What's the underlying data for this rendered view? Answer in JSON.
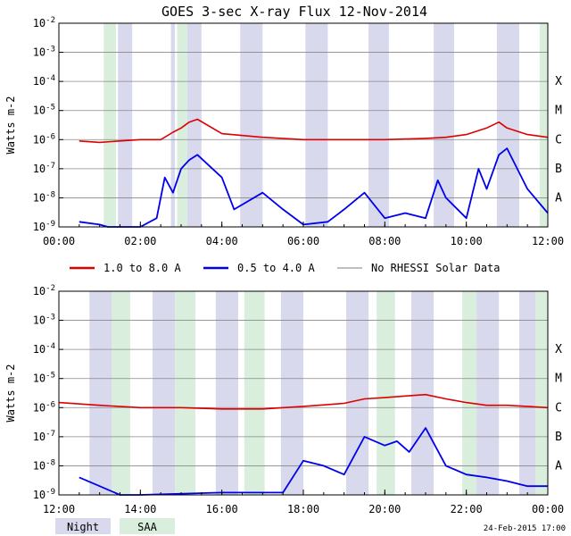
{
  "page": {
    "title": "GOES 3-sec X-ray Flux   12-Nov-2014",
    "footer_date": "24-Feb-2015 17:00"
  },
  "legend": {
    "series": [
      {
        "label": "1.0 to 8.0 A",
        "color": "#dd0000"
      },
      {
        "label": "0.5 to 4.0 A",
        "color": "#0000ee"
      },
      {
        "label": "No RHESSI Solar Data",
        "color": "#999999"
      }
    ],
    "bands": [
      {
        "label": "Night",
        "color": "#d9d9ee"
      },
      {
        "label": "SAA",
        "color": "#d9eedd"
      }
    ]
  },
  "chart_data": [
    {
      "type": "line",
      "title": "GOES 3-sec X-ray Flux   12-Nov-2014",
      "ylabel": "Watts m-2",
      "yscale": "log",
      "ylim": [
        1e-09,
        0.01
      ],
      "y_ticks": [
        "10-9",
        "10-8",
        "10-7",
        "10-6",
        "10-5",
        "10-4",
        "10-3",
        "10-2"
      ],
      "class_labels": [
        {
          "label": "A",
          "value": 1e-08
        },
        {
          "label": "B",
          "value": 1e-07
        },
        {
          "label": "C",
          "value": 1e-06
        },
        {
          "label": "M",
          "value": 1e-05
        },
        {
          "label": "X",
          "value": 0.0001
        }
      ],
      "xlim": [
        0,
        12
      ],
      "x_ticks": [
        "00:00",
        "02:00",
        "04:00",
        "06:00",
        "08:00",
        "10:00",
        "12:00"
      ],
      "night_bands": [
        [
          1.45,
          1.8
        ],
        [
          2.75,
          2.85
        ],
        [
          3.15,
          3.5
        ],
        [
          4.45,
          5.0
        ],
        [
          6.05,
          6.6
        ],
        [
          7.6,
          8.1
        ],
        [
          9.2,
          9.7
        ],
        [
          10.75,
          11.3
        ]
      ],
      "saa_bands": [
        [
          1.1,
          1.4
        ],
        [
          2.9,
          3.15
        ],
        [
          11.8,
          12.0
        ]
      ],
      "series": [
        {
          "name": "1.0 to 8.0 A",
          "x": [
            0.5,
            1,
            1.5,
            2,
            2.5,
            2.8,
            3.0,
            3.2,
            3.4,
            4,
            5,
            6,
            7,
            8,
            9,
            9.5,
            10,
            10.5,
            10.8,
            11,
            11.5,
            12
          ],
          "y": [
            9e-07,
            8e-07,
            9e-07,
            1e-06,
            1e-06,
            1.8e-06,
            2.5e-06,
            4e-06,
            5e-06,
            1.6e-06,
            1.2e-06,
            1e-06,
            1e-06,
            1e-06,
            1.1e-06,
            1.2e-06,
            1.5e-06,
            2.5e-06,
            4e-06,
            2.5e-06,
            1.5e-06,
            1.2e-06
          ]
        },
        {
          "name": "0.5 to 4.0 A",
          "x": [
            0.5,
            1,
            1.2,
            2,
            2.4,
            2.6,
            2.8,
            3,
            3.2,
            3.4,
            4,
            4.3,
            5,
            5.5,
            6,
            6.6,
            7,
            7.5,
            8,
            8.5,
            9,
            9.3,
            9.5,
            10,
            10.3,
            10.5,
            10.8,
            11,
            11.5,
            12
          ],
          "y": [
            1.5e-09,
            1.2e-09,
            1e-09,
            1e-09,
            2e-09,
            5e-08,
            1.5e-08,
            1e-07,
            2e-07,
            3e-07,
            5e-08,
            4e-09,
            1.5e-08,
            4e-09,
            1.2e-09,
            1.5e-09,
            4e-09,
            1.5e-08,
            2e-09,
            3e-09,
            2e-09,
            4e-08,
            1e-08,
            2e-09,
            1e-07,
            2e-08,
            3e-07,
            5e-07,
            2e-08,
            3e-09
          ]
        }
      ]
    },
    {
      "type": "line",
      "ylabel": "Watts m-2",
      "yscale": "log",
      "ylim": [
        1e-09,
        0.01
      ],
      "y_ticks": [
        "10-9",
        "10-8",
        "10-7",
        "10-6",
        "10-5",
        "10-4",
        "10-3",
        "10-2"
      ],
      "class_labels": [
        {
          "label": "A",
          "value": 1e-08
        },
        {
          "label": "B",
          "value": 1e-07
        },
        {
          "label": "C",
          "value": 1e-06
        },
        {
          "label": "M",
          "value": 1e-05
        },
        {
          "label": "X",
          "value": 0.0001
        }
      ],
      "xlim": [
        12,
        24
      ],
      "x_ticks": [
        "12:00",
        "14:00",
        "16:00",
        "18:00",
        "20:00",
        "22:00",
        "00:00"
      ],
      "night_bands": [
        [
          12.75,
          13.3
        ],
        [
          14.3,
          14.85
        ],
        [
          15.85,
          16.4
        ],
        [
          17.45,
          18.0
        ],
        [
          19.05,
          19.6
        ],
        [
          20.65,
          21.2
        ],
        [
          22.25,
          22.8
        ],
        [
          23.3,
          23.7
        ]
      ],
      "saa_bands": [
        [
          13.3,
          13.75
        ],
        [
          14.85,
          15.35
        ],
        [
          16.55,
          17.05
        ],
        [
          19.8,
          20.25
        ],
        [
          21.9,
          22.25
        ],
        [
          23.7,
          24.0
        ]
      ],
      "series": [
        {
          "name": "1.0 to 8.0 A",
          "x": [
            12,
            13,
            14,
            15,
            16,
            17,
            18,
            19,
            19.5,
            20,
            20.5,
            21,
            21.5,
            22,
            22.5,
            23,
            23.5,
            24
          ],
          "y": [
            1.5e-06,
            1.2e-06,
            1e-06,
            1e-06,
            9e-07,
            9e-07,
            1.1e-06,
            1.4e-06,
            2e-06,
            2.2e-06,
            2.5e-06,
            2.8e-06,
            2e-06,
            1.5e-06,
            1.2e-06,
            1.2e-06,
            1.1e-06,
            1e-06
          ]
        },
        {
          "name": "0.5 to 4.0 A",
          "x": [
            12.5,
            13,
            13.5,
            14,
            16,
            17.5,
            18,
            18.5,
            19,
            19.5,
            20,
            20.3,
            20.6,
            21,
            21.5,
            22,
            22.5,
            23,
            23.5,
            24
          ],
          "y": [
            4e-09,
            2e-09,
            1e-09,
            1e-09,
            1.2e-09,
            1.2e-09,
            1.5e-08,
            1e-08,
            5e-09,
            1e-07,
            5e-08,
            7e-08,
            3e-08,
            2e-07,
            1e-08,
            5e-09,
            4e-09,
            3e-09,
            2e-09,
            2e-09
          ]
        }
      ]
    }
  ]
}
